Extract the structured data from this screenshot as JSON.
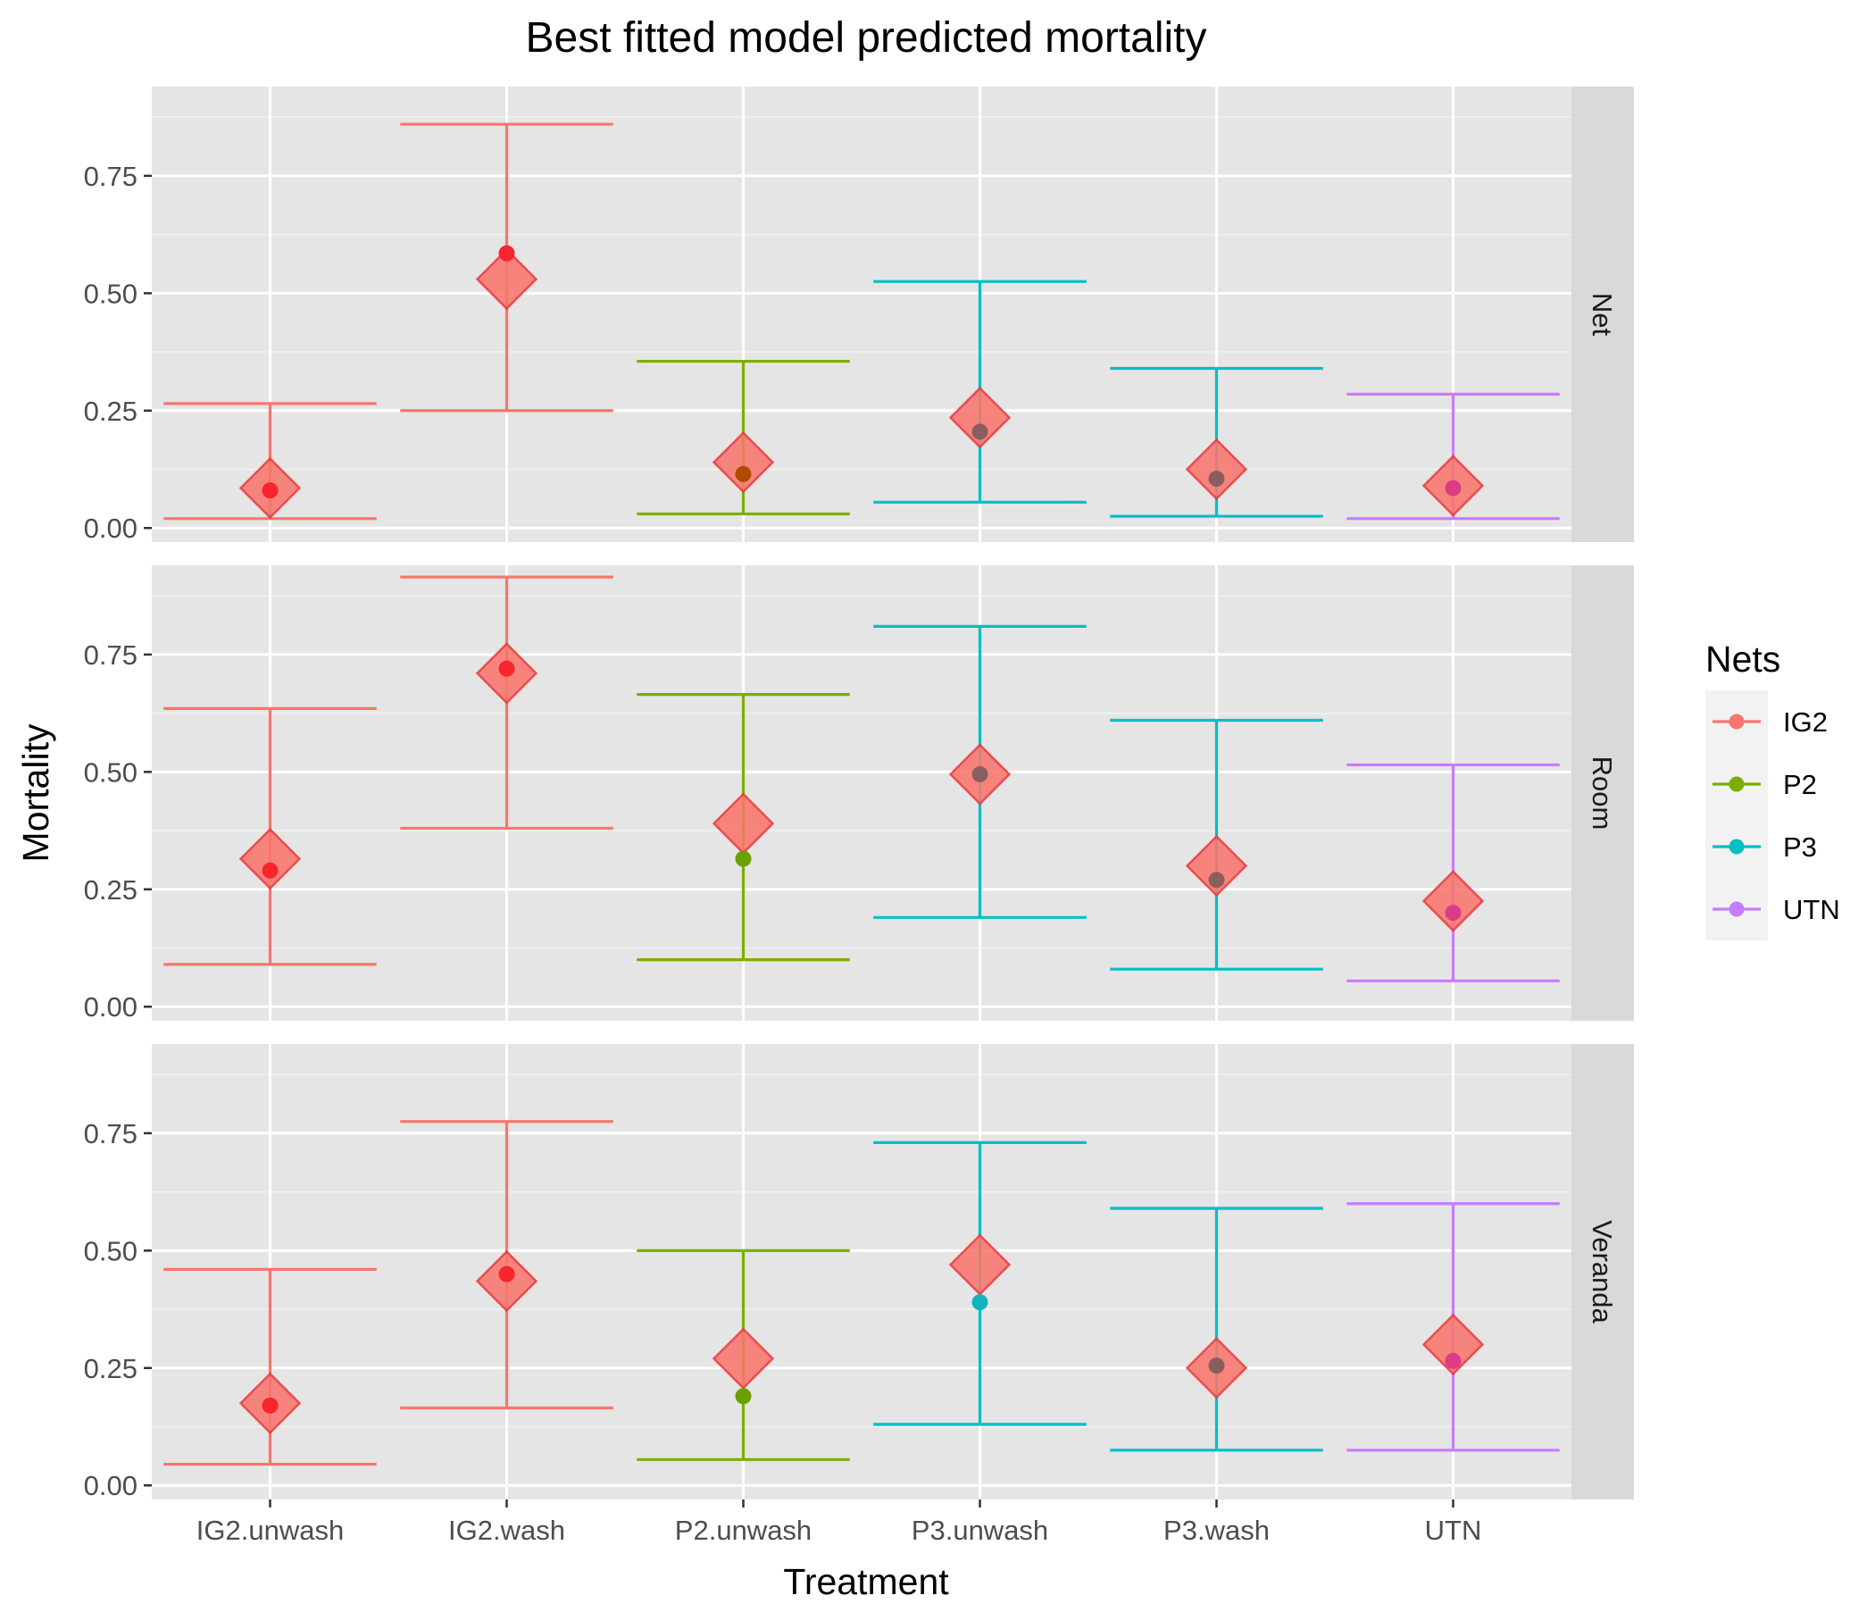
{
  "chart_data": {
    "type": "errorbar",
    "title": "Best fitted model predicted mortality",
    "xlabel": "Treatment",
    "ylabel": "Mortality",
    "categories": [
      "IG2.unwash",
      "IG2.wash",
      "P2.unwash",
      "P3.unwash",
      "P3.wash",
      "UTN"
    ],
    "net_of_category": [
      "IG2",
      "IG2",
      "P2",
      "P3",
      "P3",
      "UTN"
    ],
    "ylim": [
      -0.03,
      0.94
    ],
    "yticks": [
      0.0,
      0.25,
      0.5,
      0.75
    ],
    "ytick_labels": [
      "0.00",
      "0.25",
      "0.50",
      "0.75"
    ],
    "grid": true,
    "legend": {
      "title": "Nets",
      "position": "right",
      "entries": [
        {
          "label": "IG2",
          "color": "#F8766D"
        },
        {
          "label": "P2",
          "color": "#7CAE00"
        },
        {
          "label": "P3",
          "color": "#00BFC4"
        },
        {
          "label": "UTN",
          "color": "#C77CFF"
        }
      ]
    },
    "marker_colors": {
      "point": {
        "IG2": "#F8252D",
        "P2": "#6AA000",
        "P3": "#14B3BB",
        "UTN": "#C75AF5"
      },
      "point_on_diamond": {
        "IG2": "#F8252D",
        "P2": "#B14A00",
        "P3": "#8A5E5E",
        "UTN": "#DE3B87"
      },
      "diamond": "#F8766D",
      "diamond_outline": "#E8353A"
    },
    "panels": [
      {
        "facet": "Net",
        "observed": [
          0.08,
          0.585,
          0.115,
          0.205,
          0.105,
          0.085
        ],
        "lower": [
          0.02,
          0.25,
          0.03,
          0.055,
          0.025,
          0.02
        ],
        "upper": [
          0.265,
          0.86,
          0.355,
          0.525,
          0.34,
          0.285
        ],
        "predicted": [
          0.085,
          0.53,
          0.14,
          0.235,
          0.125,
          0.09
        ]
      },
      {
        "facet": "Room",
        "observed": [
          0.29,
          0.72,
          0.315,
          0.495,
          0.27,
          0.2
        ],
        "lower": [
          0.09,
          0.38,
          0.1,
          0.19,
          0.08,
          0.055
        ],
        "upper": [
          0.635,
          0.915,
          0.665,
          0.81,
          0.61,
          0.515
        ],
        "predicted": [
          0.315,
          0.71,
          0.39,
          0.495,
          0.3,
          0.225
        ]
      },
      {
        "facet": "Veranda",
        "observed": [
          0.17,
          0.45,
          0.19,
          0.39,
          0.255,
          0.265
        ],
        "lower": [
          0.045,
          0.165,
          0.055,
          0.13,
          0.075,
          0.075
        ],
        "upper": [
          0.46,
          0.775,
          0.5,
          0.73,
          0.59,
          0.6
        ],
        "predicted": [
          0.175,
          0.435,
          0.27,
          0.47,
          0.25,
          0.3
        ]
      }
    ]
  }
}
